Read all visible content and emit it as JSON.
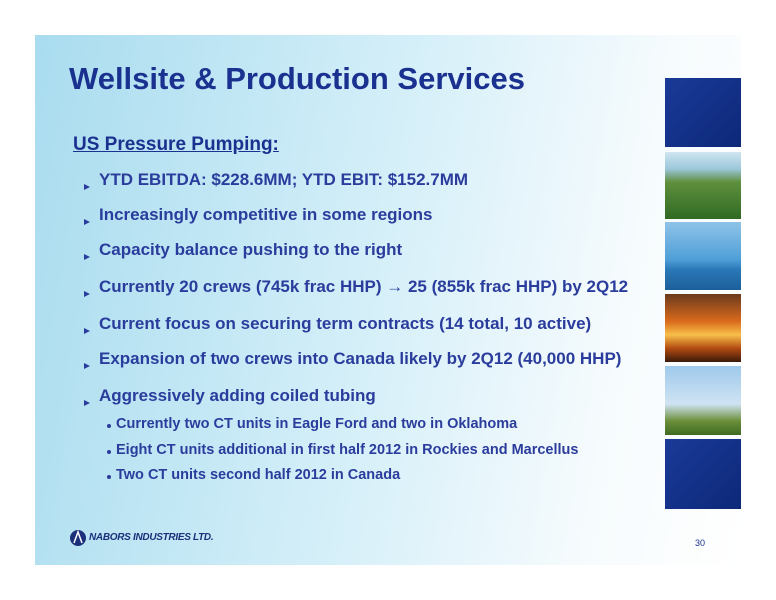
{
  "header": {
    "title": "Wellsite & Production Services"
  },
  "section": {
    "heading": "US Pressure Pumping:",
    "bullets": [
      "YTD EBITDA: $228.6MM; YTD EBIT:  $152.7MM",
      "Increasingly competitive in some regions",
      "Capacity balance pushing to the right",
      "Currently 20 crews (745k frac HHP) → 25 (855k frac HHP) by 2Q12",
      "Current focus on securing term contracts (14 total, 10 active)",
      "Expansion of two crews into Canada likely by 2Q12 (40,000 HHP)",
      "Aggressively adding coiled tubing"
    ],
    "sub_bullets": [
      "Currently two CT units in Eagle Ford and two in Oklahoma",
      "Eight CT units additional in first half 2012 in Rockies and Marcellus",
      "Two CT units second half 2012 in Canada"
    ]
  },
  "footer": {
    "logo": "NABORS INDUSTRIES LTD.",
    "page_number": "30"
  }
}
